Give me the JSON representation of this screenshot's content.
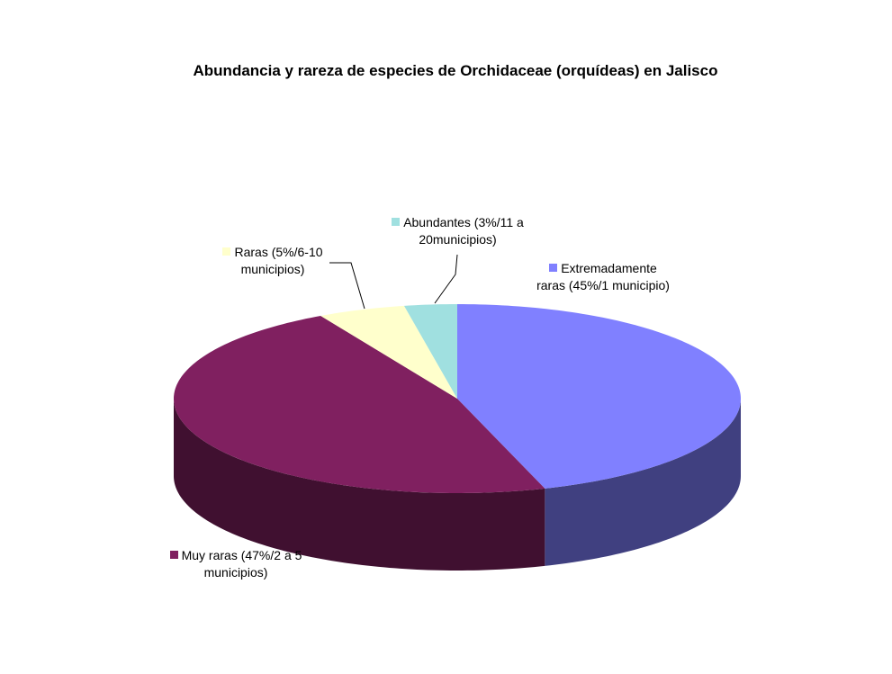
{
  "chart_data": {
    "type": "pie3d",
    "title": "Abundancia y rareza de especies de Orchidaceae (orquídeas) en Jalisco",
    "categories": [
      "Extremadamente raras (45%/1 municipio)",
      "Muy raras (47%/2 a 5 municipios)",
      "Raras (5%/6-10 municipios)",
      "Abundantes (3%/11 a 20municipios)"
    ],
    "values": [
      45,
      47,
      5,
      3
    ],
    "colors": [
      "#8080ff",
      "#802060",
      "#ffffcc",
      "#a0e0e0"
    ]
  }
}
